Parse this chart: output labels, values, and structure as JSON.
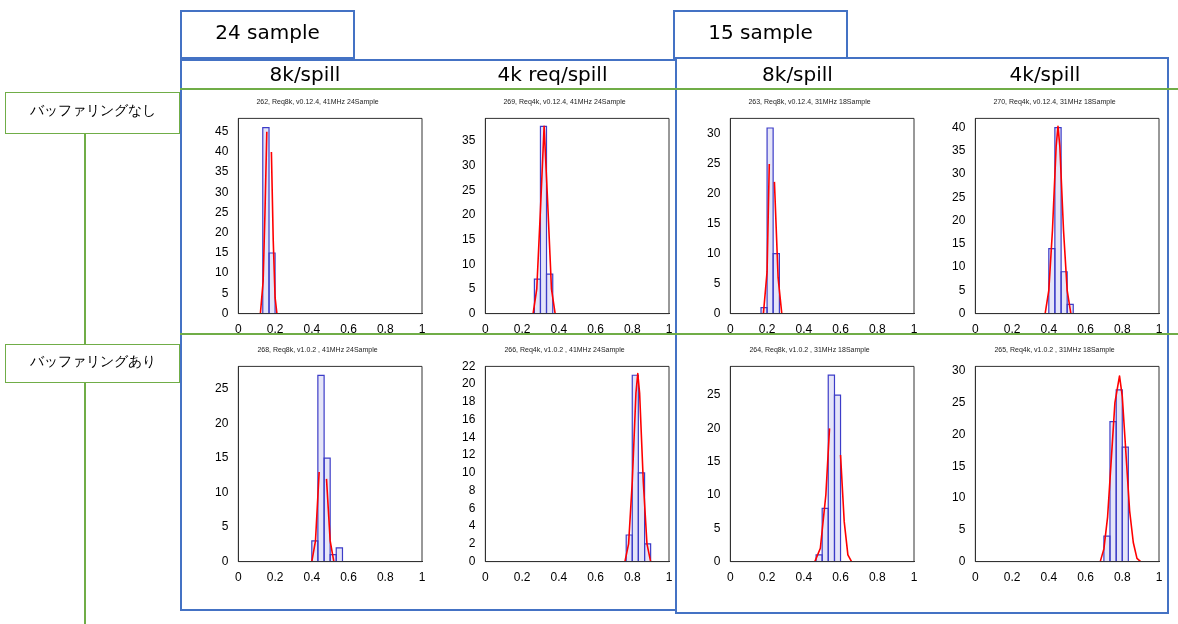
{
  "chart_data": [
    {
      "type": "histogram",
      "title": "262, Req8k, v0.12.4, 41MHz 24Sample",
      "annotations": [
        "24 sample",
        "8k/spill",
        "バッファリングなし"
      ],
      "xlim": [
        0,
        1
      ],
      "xticks": [
        0,
        0.2,
        0.4,
        0.6,
        0.8,
        1
      ],
      "ylim": [
        0,
        48.3
      ],
      "yticks": [
        0,
        5,
        10,
        15,
        20,
        25,
        30,
        35,
        40,
        45
      ],
      "marker": "none",
      "series": [
        {
          "bins": [
            0.133,
            0.167,
            0.2
          ],
          "values": [
            46,
            15
          ],
          "color": "#3c3cc8"
        },
        {
          "type": "line",
          "x": [
            0.12,
            0.135,
            0.145,
            0.155,
            0.157,
            0.165,
            0.176,
            0.18,
            0.19,
            0.2,
            0.21
          ],
          "values": [
            0,
            8,
            25,
            45,
            null,
            null,
            null,
            40,
            18,
            4,
            0
          ],
          "color": "#ff0000"
        }
      ]
    },
    {
      "type": "histogram",
      "title": "269, Req4k, v0.12.4, 41MHz 24Sample",
      "annotations": [
        "4k req/spill"
      ],
      "xlim": [
        0,
        1
      ],
      "xticks": [
        0,
        0.2,
        0.4,
        0.6,
        0.8,
        1
      ],
      "ylim": [
        0,
        39.6
      ],
      "yticks": [
        0,
        5,
        10,
        15,
        20,
        25,
        30,
        35
      ],
      "marker": "none",
      "series": [
        {
          "bins": [
            0.267,
            0.3,
            0.333,
            0.367
          ],
          "values": [
            7,
            38,
            8
          ],
          "color": "#3c3cc8"
        },
        {
          "type": "line",
          "x": [
            0.26,
            0.28,
            0.3,
            0.32,
            0.34,
            0.36,
            0.38
          ],
          "values": [
            0,
            5,
            21,
            38,
            22,
            5,
            0
          ],
          "color": "#ff0000"
        }
      ]
    },
    {
      "type": "histogram",
      "title": "263, Req8k, v0.12.4, 31MHz 18Sample",
      "annotations": [
        "15 sample",
        "8k/spill"
      ],
      "xlim": [
        0,
        1
      ],
      "xticks": [
        0,
        0.2,
        0.4,
        0.6,
        0.8,
        1
      ],
      "ylim": [
        0,
        32.6
      ],
      "yticks": [
        0,
        5,
        10,
        15,
        20,
        25,
        30
      ],
      "marker": "none",
      "series": [
        {
          "bins": [
            0.167,
            0.2,
            0.233,
            0.267
          ],
          "values": [
            1,
            31,
            10
          ],
          "color": "#3c3cc8"
        },
        {
          "type": "line",
          "x": [
            0.18,
            0.2,
            0.212,
            0.218,
            0.225,
            0.232,
            0.24,
            0.26,
            0.28
          ],
          "values": [
            0,
            7,
            25,
            null,
            null,
            null,
            22,
            6,
            0
          ],
          "color": "#ff0000"
        }
      ]
    },
    {
      "type": "histogram",
      "title": "270, Req4k, v0.12.4, 31MHz 18Sample",
      "annotations": [
        "4k/spill"
      ],
      "xlim": [
        0,
        1
      ],
      "xticks": [
        0,
        0.2,
        0.4,
        0.6,
        0.8,
        1
      ],
      "ylim": [
        0,
        42
      ],
      "yticks": [
        0,
        5,
        10,
        15,
        20,
        25,
        30,
        35,
        40
      ],
      "marker": "none",
      "series": [
        {
          "bins": [
            0.4,
            0.433,
            0.467,
            0.5,
            0.533
          ],
          "values": [
            14,
            40,
            9,
            2
          ],
          "color": "#3c3cc8"
        },
        {
          "type": "line",
          "x": [
            0.38,
            0.4,
            0.42,
            0.44,
            0.45,
            0.46,
            0.48,
            0.5,
            0.52
          ],
          "values": [
            0,
            5,
            18,
            36,
            40.3,
            36,
            18,
            5,
            0
          ],
          "color": "#ff0000"
        }
      ]
    },
    {
      "type": "histogram",
      "title": "268, Req8k, v1.0.2 , 41MHz 24Sample",
      "annotations": [
        "バッファリングあり"
      ],
      "xlim": [
        0,
        1
      ],
      "xticks": [
        0,
        0.2,
        0.4,
        0.6,
        0.8,
        1
      ],
      "ylim": [
        0,
        28.3
      ],
      "yticks": [
        0,
        5,
        10,
        15,
        20,
        25
      ],
      "marker": "none",
      "series": [
        {
          "bins": [
            0.4,
            0.433,
            0.467,
            0.5,
            0.533,
            0.567
          ],
          "values": [
            3,
            27,
            15,
            1,
            2
          ],
          "color": "#3c3cc8"
        },
        {
          "type": "line",
          "x": [
            0.4,
            0.42,
            0.44,
            0.452,
            0.459,
            0.466,
            0.48,
            0.5,
            0.52
          ],
          "values": [
            0,
            3,
            13,
            null,
            null,
            null,
            12,
            3,
            0
          ],
          "color": "#ff0000"
        }
      ]
    },
    {
      "type": "histogram",
      "title": "266, Req4k, v1.0.2 , 41MHz 24Sample",
      "xlim": [
        0,
        1
      ],
      "xticks": [
        0,
        0.2,
        0.4,
        0.6,
        0.8,
        1
      ],
      "ylim": [
        0,
        22
      ],
      "yticks": [
        0,
        2,
        4,
        6,
        8,
        10,
        12,
        14,
        16,
        18,
        20,
        22
      ],
      "marker": "none",
      "series": [
        {
          "bins": [
            0.767,
            0.8,
            0.833,
            0.867,
            0.9
          ],
          "values": [
            3,
            21,
            10,
            2
          ],
          "color": "#3c3cc8"
        },
        {
          "type": "line",
          "x": [
            0.76,
            0.78,
            0.8,
            0.82,
            0.83,
            0.84,
            0.86,
            0.88,
            0.9
          ],
          "values": [
            0,
            2,
            9,
            19,
            21.2,
            19,
            9,
            2,
            0
          ],
          "color": "#ff0000"
        }
      ]
    },
    {
      "type": "histogram",
      "title": "264, Req8k, v1.0.2 , 31MHz 18Sample",
      "xlim": [
        0,
        1
      ],
      "xticks": [
        0,
        0.2,
        0.4,
        0.6,
        0.8,
        1
      ],
      "ylim": [
        0,
        29.3
      ],
      "yticks": [
        0,
        5,
        10,
        15,
        20,
        25
      ],
      "marker": "none",
      "series": [
        {
          "bins": [
            0.467,
            0.5,
            0.533,
            0.567,
            0.6
          ],
          "values": [
            1,
            8,
            28,
            25
          ],
          "color": "#3c3cc8"
        },
        {
          "type": "line",
          "x": [
            0.46,
            0.49,
            0.52,
            0.54,
            0.555,
            0.565,
            0.575,
            0.6,
            0.62,
            0.64,
            0.66
          ],
          "values": [
            0,
            2,
            10,
            20,
            null,
            null,
            null,
            16,
            6,
            1,
            0
          ],
          "color": "#ff0000"
        }
      ]
    },
    {
      "type": "histogram",
      "title": "265, Req4k, v1.0.2 , 31MHz 18Sample",
      "xlim": [
        0,
        1
      ],
      "xticks": [
        0,
        0.2,
        0.4,
        0.6,
        0.8,
        1
      ],
      "ylim": [
        0,
        30.7
      ],
      "yticks": [
        0,
        5,
        10,
        15,
        20,
        25,
        30
      ],
      "marker": "none",
      "series": [
        {
          "bins": [
            0.7,
            0.733,
            0.767,
            0.8,
            0.833
          ],
          "values": [
            4,
            22,
            27,
            18
          ],
          "color": "#3c3cc8"
        },
        {
          "type": "line",
          "x": [
            0.68,
            0.7,
            0.72,
            0.74,
            0.76,
            0.785,
            0.8,
            0.82,
            0.84,
            0.86,
            0.88,
            0.9
          ],
          "values": [
            0,
            2,
            7,
            16,
            25,
            29.2,
            26,
            17,
            8,
            3,
            0.5,
            0
          ],
          "color": "#ff0000"
        }
      ]
    }
  ]
}
